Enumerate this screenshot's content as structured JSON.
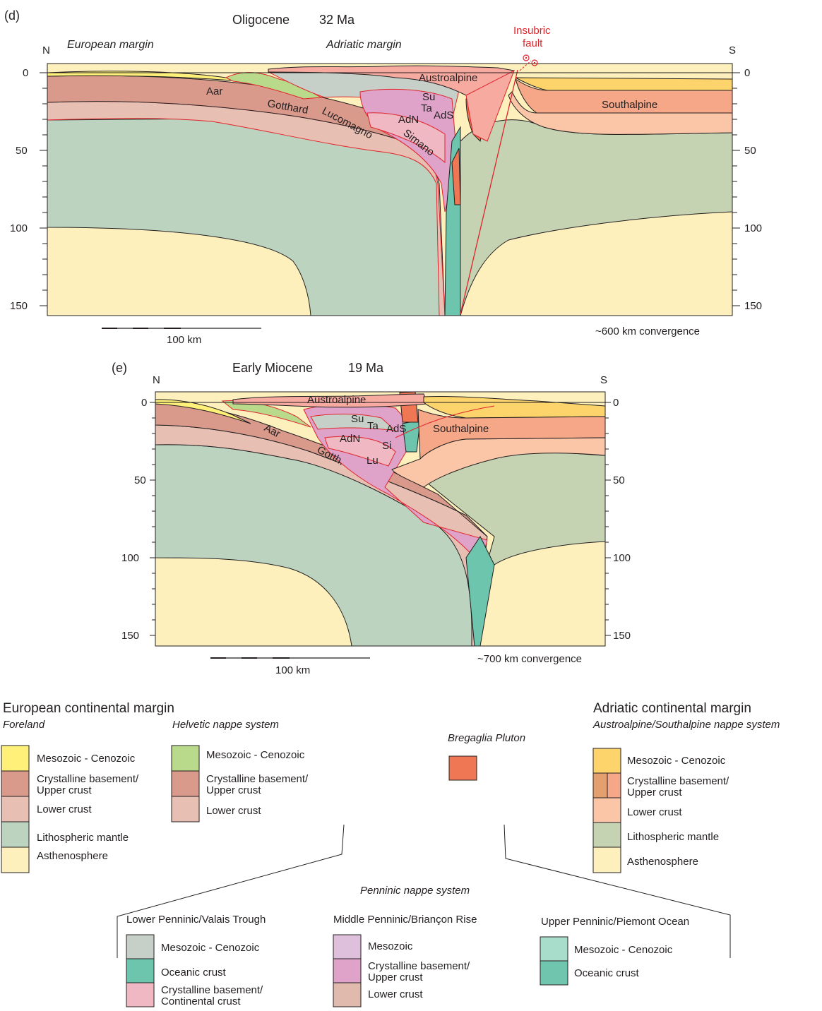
{
  "panel_d": {
    "letter": "(d)",
    "epoch": "Oligocene",
    "age": "32 Ma",
    "north": "N",
    "south": "S",
    "european_margin": "European margin",
    "adriatic_margin": "Adriatic margin",
    "fault_label": [
      "Insubric",
      "fault"
    ],
    "depth_ticks_left": [
      "0",
      "50",
      "100",
      "150"
    ],
    "depth_ticks_right": [
      "0",
      "50",
      "100",
      "150"
    ],
    "units": [
      "Aar",
      "Gotthard",
      "Lucomagno",
      "Simano",
      "Austroalpine",
      "Southalpine",
      "Su",
      "Ta",
      "AdN",
      "AdS"
    ],
    "scale_label": "100 km",
    "convergence": "~600 km convergence"
  },
  "panel_e": {
    "letter": "(e)",
    "epoch": "Early Miocene",
    "age": "19 Ma",
    "north": "N",
    "south": "S",
    "depth_ticks_left": [
      "0",
      "50",
      "100",
      "150"
    ],
    "depth_ticks_right": [
      "0",
      "50",
      "100",
      "150"
    ],
    "units": [
      "Austroalpine",
      "Southalpine",
      "Su",
      "Ta",
      "AdS",
      "AdN",
      "Si",
      "Aar",
      "Gotth.",
      "Lu"
    ],
    "scale_label": "100 km",
    "convergence": "~700 km convergence"
  },
  "legend": {
    "european": {
      "title": "European continental margin",
      "foreland": {
        "title": "Foreland",
        "items": [
          "Mesozoic - Cenozoic",
          "Crystalline basement/",
          "Upper crust",
          "Lower crust",
          "Lithospheric mantle",
          "Asthenosphere"
        ]
      },
      "helvetic": {
        "title": "Helvetic nappe system",
        "items": [
          "Mesozoic - Cenozoic",
          "Crystalline basement/",
          "Upper crust",
          "Lower crust"
        ]
      }
    },
    "bregaglia": {
      "title": "Bregaglia Pluton"
    },
    "adriatic": {
      "title": "Adriatic continental margin",
      "subtitle": "Austroalpine/Southalpine nappe system",
      "items": [
        "Mesozoic - Cenozoic",
        "Crystalline basement/",
        "Upper crust",
        "Lower crust",
        "Lithospheric mantle",
        "Asthenosphere"
      ]
    },
    "penninic": {
      "title": "Penninic nappe system",
      "lower": {
        "title": "Lower Penninic/Valais Trough",
        "items": [
          "Mesozoic - Cenozoic",
          "Oceanic crust",
          "Crystalline basement/",
          "Continental crust"
        ]
      },
      "middle": {
        "title": "Middle Penninic/Briançon Rise",
        "items": [
          "Mesozoic",
          "Crystalline basement/",
          "Upper crust",
          "Lower crust"
        ]
      },
      "upper": {
        "title": "Upper Penninic/Piemont Ocean",
        "items": [
          "Mesozoic - Cenozoic",
          "Oceanic crust"
        ]
      }
    }
  },
  "colors": {
    "eu_meso": "#fff07a",
    "eu_upper": "#d99a8c",
    "eu_lower": "#e8bfb3",
    "eu_mantle": "#bcd3c0",
    "asthenosphere": "#fdf0bd",
    "helv_meso": "#b9d98b",
    "ad_meso": "#fdd36b",
    "ad_upper": "#f6a787",
    "ad_upper_dark": "#e3a06e",
    "ad_lower": "#fbc6a8",
    "ad_mantle": "#c5d3b2",
    "bregaglia": "#f07753",
    "lp_meso": "#c7d0c8",
    "lp_ocean": "#6ec5ad",
    "lp_cont": "#f0b8c2",
    "mp_meso": "#dfc0dc",
    "mp_upper": "#dfa3c9",
    "mp_lower": "#e1baae",
    "up_meso": "#a8dccb",
    "up_ocean": "#70c5ae",
    "austroalpine": "#f7aaa0",
    "fault_red": "#e0242b"
  }
}
